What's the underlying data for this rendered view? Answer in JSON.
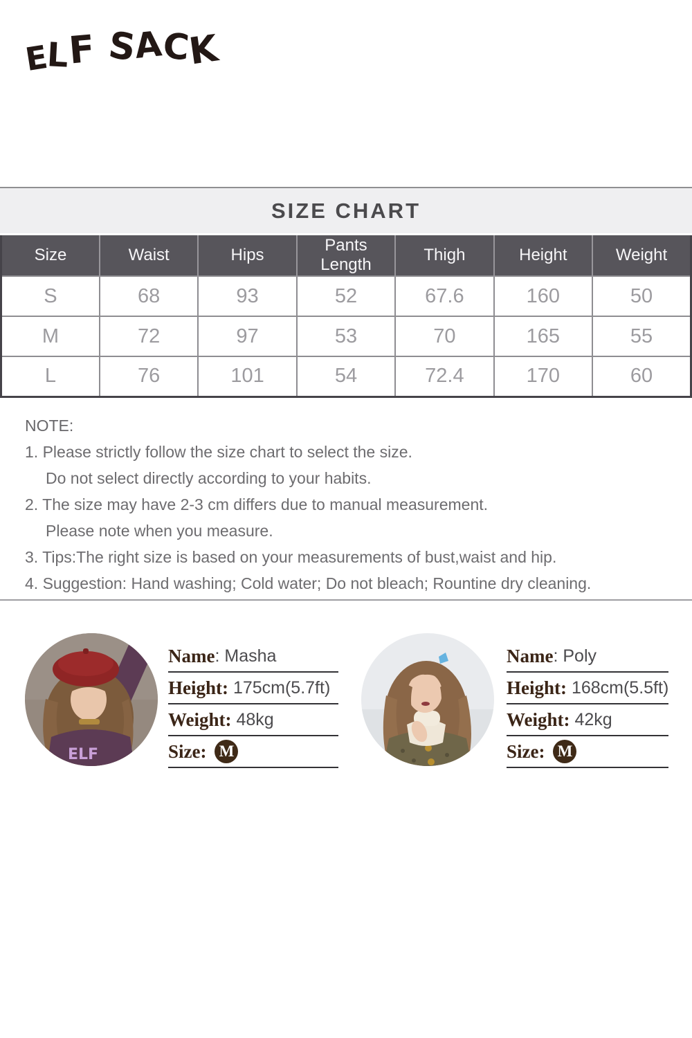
{
  "brand": {
    "logo_text": "ELF SACK"
  },
  "size_chart": {
    "title": "SIZE CHART",
    "columns": [
      "Size",
      "Waist",
      "Hips",
      "Pants Length",
      "Thigh",
      "Height",
      "Weight"
    ],
    "rows": [
      {
        "size": "S",
        "values": [
          "68",
          "93",
          "52",
          "67.6",
          "160",
          "50"
        ]
      },
      {
        "size": "M",
        "values": [
          "72",
          "97",
          "53",
          "70",
          "165",
          "55"
        ]
      },
      {
        "size": "L",
        "values": [
          "76",
          "101",
          "54",
          "72.4",
          "170",
          "60"
        ]
      }
    ]
  },
  "notes": {
    "heading": "NOTE:",
    "lines": [
      {
        "text": "1. Please strictly follow the size chart to select the size.",
        "indent": false
      },
      {
        "text": "Do not select directly according to your habits.",
        "indent": true
      },
      {
        "text": "2. The size may have 2-3 cm differs due to manual measurement.",
        "indent": false
      },
      {
        "text": "Please note when you measure.",
        "indent": true
      },
      {
        "text": "3. Tips:The right size is based on your measurements of bust,waist and hip.",
        "indent": false
      },
      {
        "text": "4. Suggestion: Hand washing; Cold water; Do not bleach; Rountine dry cleaning.",
        "indent": false
      }
    ]
  },
  "models": [
    {
      "photo_text": "ELF",
      "name_label": "Name",
      "name_value": ": Masha",
      "height_label": "Height:",
      "height_value": " 175cm(5.7ft)",
      "weight_label": "Weight:",
      "weight_value": " 48kg",
      "size_label": "Size:",
      "size_value": "M"
    },
    {
      "name_label": "Name",
      "name_value": ": Poly",
      "height_label": "Height:",
      "height_value": " 168cm(5.5ft)",
      "weight_label": "Weight:",
      "weight_value": " 42kg",
      "size_label": "Size:",
      "size_value": "M"
    }
  ],
  "colors": {
    "banner_bg": "#EFEFF1",
    "table_header_bg": "#57555B",
    "table_text": "#9C9B9F",
    "note_text": "#6D6C6E",
    "label_brown": "#3B2517",
    "badge_bg": "#3F2A17",
    "divider": "#9E9DA1",
    "logo_ink": "#231815"
  }
}
